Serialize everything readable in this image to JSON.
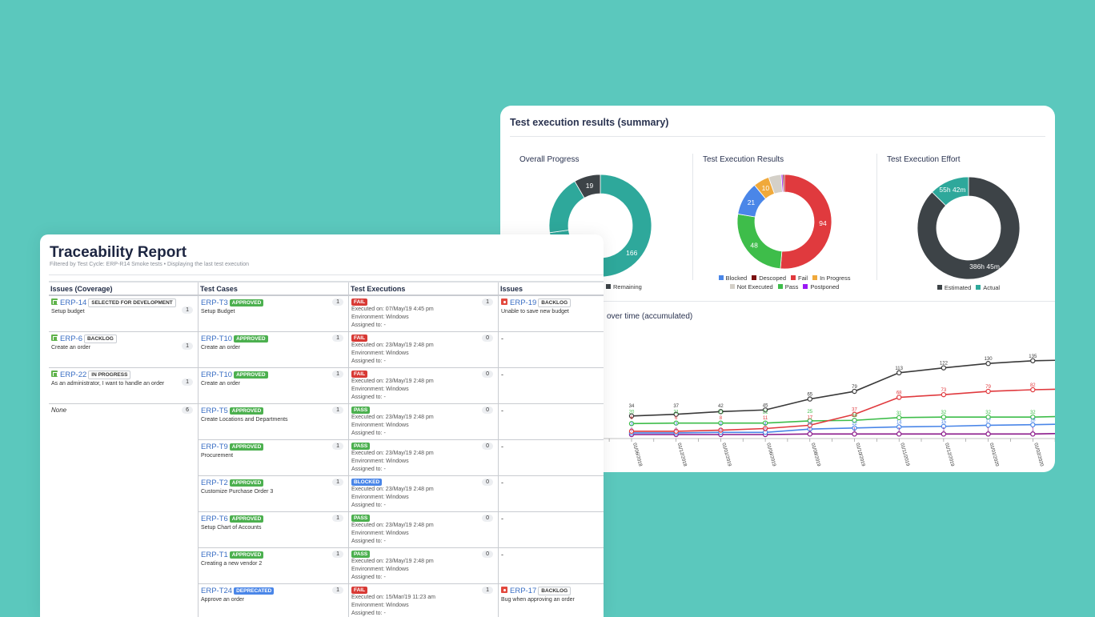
{
  "summary": {
    "title": "Test execution results (summary)",
    "overall": {
      "title": "Overall Progress",
      "segments": [
        {
          "value": 166,
          "label": "166",
          "color": "#2ea89b"
        },
        {
          "value": 43,
          "label": "",
          "color": "#2ea89b"
        },
        {
          "value": 19,
          "label": "19",
          "color": "#3d4347"
        }
      ],
      "legend": [
        {
          "label": "Remaining",
          "color": "#3d4347"
        }
      ]
    },
    "results": {
      "title": "Test Execution Results",
      "segments": [
        {
          "name": "Fail",
          "value": 94,
          "label": "94",
          "color": "#e03a3e"
        },
        {
          "name": "Pass",
          "value": 48,
          "label": "48",
          "color": "#3ebd4a"
        },
        {
          "name": "Blocked",
          "value": 21,
          "label": "21",
          "color": "#4a86e8"
        },
        {
          "name": "In Progress",
          "value": 10,
          "label": "10",
          "color": "#f0a93b"
        },
        {
          "name": "Not Executed",
          "value": 8,
          "label": "",
          "color": "#d4d0c8"
        },
        {
          "name": "Postponed",
          "value": 1,
          "label": "",
          "color": "#9b19f5"
        },
        {
          "name": "Descoped",
          "value": 1,
          "label": "",
          "color": "#7a1010"
        }
      ],
      "legend_row1": [
        {
          "label": "Blocked",
          "color": "#4a86e8"
        },
        {
          "label": "Descoped",
          "color": "#7a1010"
        },
        {
          "label": "Fail",
          "color": "#e03a3e"
        },
        {
          "label": "In Progress",
          "color": "#f0a93b"
        }
      ],
      "legend_row2": [
        {
          "label": "Not Executed",
          "color": "#d4d0c8"
        },
        {
          "label": "Pass",
          "color": "#3ebd4a"
        },
        {
          "label": "Postponed",
          "color": "#9b19f5"
        }
      ]
    },
    "effort": {
      "title": "Test Execution Effort",
      "segments": [
        {
          "value": 386.75,
          "label": "386h 45m",
          "color": "#3d4347"
        },
        {
          "value": 55.7,
          "label": "55h 42m",
          "color": "#2ea89b"
        }
      ],
      "legend": [
        {
          "label": "Estimated",
          "color": "#3d4347"
        },
        {
          "label": "Actual",
          "color": "#2ea89b"
        }
      ]
    }
  },
  "chart_data": {
    "type": "line",
    "title": "over time (accumulated)",
    "x": [
      "01/06/2018",
      "01/12/2018",
      "01/01/2019",
      "01/06/2019",
      "01/08/2019",
      "01/10/2019",
      "01/11/2019",
      "01/12/2019",
      "01/01/2020",
      "01/02/2020"
    ],
    "series": [
      {
        "color": "#3a3a3a",
        "values": [
          34,
          37,
          42,
          45,
          65,
          79,
          113,
          122,
          130,
          135
        ]
      },
      {
        "color": "#e03a3e",
        "values": [
          6,
          6,
          8,
          11,
          17,
          37,
          68,
          73,
          79,
          82
        ]
      },
      {
        "color": "#3ebd4a",
        "values": [
          20,
          21,
          21,
          21,
          25,
          26,
          31,
          32,
          32,
          32
        ]
      },
      {
        "color": "#4a86e8",
        "values": [
          3,
          3,
          4,
          4,
          10,
          12,
          14,
          15,
          17,
          18
        ]
      },
      {
        "color": "#8b1a8b",
        "values": [
          0,
          0,
          0,
          0,
          1,
          1,
          1,
          1,
          1,
          1
        ]
      }
    ],
    "ylim": [
      0,
      140
    ]
  },
  "report": {
    "title": "Traceability Report",
    "subtitle": "Filtered by Test Cycle: ERP-R14 Smoke tests  •  Displaying the last test execution",
    "headers": [
      "Issues (Coverage)",
      "Test Cases",
      "Test Executions",
      "Issues"
    ],
    "coverage": [
      {
        "id": "ERP-14",
        "status": "SELECTED FOR DEVELOPMENT",
        "desc": "Setup budget",
        "count": "1"
      },
      {
        "id": "ERP-6",
        "status": "BACKLOG",
        "desc": "Create an order",
        "count": "1"
      },
      {
        "id": "ERP-22",
        "status": "IN PROGRESS",
        "desc": "As an administrator, I want to handle an order",
        "count": "1"
      },
      {
        "id": "",
        "status": "",
        "desc": "None",
        "count": "6"
      }
    ],
    "rows": [
      {
        "tc": {
          "id": "ERP-T3",
          "status": "APPROVED",
          "desc": "Setup Budget",
          "count": "1"
        },
        "ex": {
          "result": "FAIL",
          "executed": "Executed on: 07/May/19 4:45 pm",
          "env": "Environment: Windows",
          "assigned": "Assigned to: -",
          "count": "1"
        },
        "issue": {
          "id": "ERP-19",
          "status": "BACKLOG",
          "desc": "Unable to save new budget"
        }
      },
      {
        "tc": {
          "id": "ERP-T10",
          "status": "APPROVED",
          "desc": "Create an order",
          "count": "1"
        },
        "ex": {
          "result": "FAIL",
          "executed": "Executed on: 23/May/19 2:48 pm",
          "env": "Environment: Windows",
          "assigned": "Assigned to: -",
          "count": "0"
        },
        "issue": {
          "dash": "-"
        }
      },
      {
        "tc": {
          "id": "ERP-T10",
          "status": "APPROVED",
          "desc": "Create an order",
          "count": "1"
        },
        "ex": {
          "result": "FAIL",
          "executed": "Executed on: 23/May/19 2:48 pm",
          "env": "Environment: Windows",
          "assigned": "Assigned to: -",
          "count": "0"
        },
        "issue": {
          "dash": "-"
        }
      },
      {
        "tc": {
          "id": "ERP-T5",
          "status": "APPROVED",
          "desc": "Create Locations and Departments",
          "count": "1"
        },
        "ex": {
          "result": "PASS",
          "executed": "Executed on: 23/May/19 2:48 pm",
          "env": "Environment: Windows",
          "assigned": "Assigned to: -",
          "count": "0"
        },
        "issue": {
          "dash": "-"
        }
      },
      {
        "tc": {
          "id": "ERP-T9",
          "status": "APPROVED",
          "desc": "Procurement",
          "count": "1"
        },
        "ex": {
          "result": "PASS",
          "executed": "Executed on: 23/May/19 2:48 pm",
          "env": "Environment: Windows",
          "assigned": "Assigned to: -",
          "count": "0"
        },
        "issue": {
          "dash": "-"
        }
      },
      {
        "tc": {
          "id": "ERP-T2",
          "status": "APPROVED",
          "desc": "Customize Purchase Order 3",
          "count": "1"
        },
        "ex": {
          "result": "BLOCKED",
          "executed": "Executed on: 23/May/19 2:48 pm",
          "env": "Environment: Windows",
          "assigned": "Assigned to: -",
          "count": "0"
        },
        "issue": {
          "dash": "-"
        }
      },
      {
        "tc": {
          "id": "ERP-T6",
          "status": "APPROVED",
          "desc": "Setup Chart of Accounts",
          "count": "1"
        },
        "ex": {
          "result": "PASS",
          "executed": "Executed on: 23/May/19 2:48 pm",
          "env": "Environment: Windows",
          "assigned": "Assigned to: -",
          "count": "0"
        },
        "issue": {
          "dash": "-"
        }
      },
      {
        "tc": {
          "id": "ERP-T1",
          "status": "APPROVED",
          "desc": "Creating a new vendor 2",
          "count": "1"
        },
        "ex": {
          "result": "PASS",
          "executed": "Executed on: 23/May/19 2:48 pm",
          "env": "Environment: Windows",
          "assigned": "Assigned to: -",
          "count": "0"
        },
        "issue": {
          "dash": "-"
        }
      },
      {
        "tc": {
          "id": "ERP-T24",
          "status": "DEPRECATED",
          "desc": "Approve an order",
          "count": "1"
        },
        "ex": {
          "result": "FAIL",
          "executed": "Executed on: 15/Mar/19 11:23 am",
          "env": "Environment: Windows",
          "assigned": "Assigned to: -",
          "count": "1"
        },
        "issue": {
          "id": "ERP-17",
          "status": "BACKLOG",
          "desc": "Bug when approving an order"
        }
      }
    ]
  }
}
